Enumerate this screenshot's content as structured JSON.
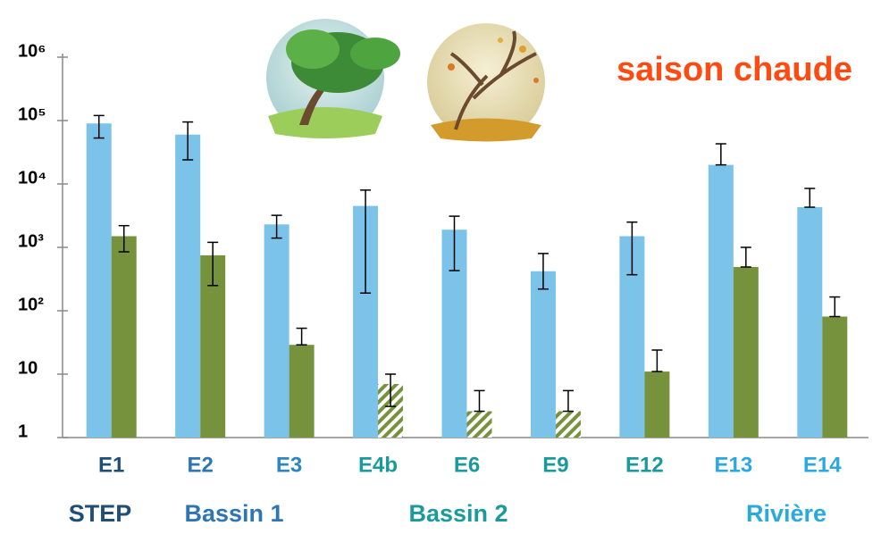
{
  "chart_data": {
    "type": "bar",
    "title": "saison chaude",
    "log_scale": true,
    "categories": [
      "E1",
      "E2",
      "E3",
      "E4b",
      "E6",
      "E9",
      "E12",
      "E13",
      "E14"
    ],
    "category_colors": [
      "#1f4e79",
      "#2e75b6",
      "#2e86c1",
      "#1a9a9a",
      "#1a9a9a",
      "#1a9a9a",
      "#1a9a9a",
      "#2aa8e0",
      "#2aa8e0"
    ],
    "groups": [
      {
        "name": "STEP",
        "color": "#1f4e79"
      },
      {
        "name": "Bassin 1",
        "color": "#2e75b6"
      },
      {
        "name": "Bassin 2",
        "color": "#1a9a9a"
      },
      {
        "name": "Rivière",
        "color": "#2aa8e0"
      }
    ],
    "series": [
      {
        "color": "#7cc3ea",
        "values": [
          90000,
          60000,
          2300,
          4500,
          1900,
          420,
          1500,
          20000,
          4300
        ],
        "err_low": [
          53000,
          24000,
          1400,
          190,
          430,
          220,
          370,
          20000,
          4300
        ],
        "err_high": [
          120000,
          95000,
          3200,
          8000,
          3100,
          800,
          2500,
          43000,
          8500
        ],
        "hatched": [
          false,
          false,
          false,
          false,
          false,
          false,
          false,
          false,
          false
        ]
      },
      {
        "color": "#76923c",
        "values": [
          1500,
          750,
          29,
          7,
          2.6,
          2.6,
          11,
          490,
          81
        ],
        "err_low": [
          850,
          250,
          29,
          3.1,
          2.6,
          2.6,
          11,
          490,
          81
        ],
        "err_high": [
          2200,
          1200,
          53,
          10,
          5.5,
          5.5,
          24,
          1000,
          165
        ],
        "hatched": [
          false,
          false,
          false,
          true,
          true,
          true,
          false,
          false,
          false
        ]
      }
    ],
    "ylim": [
      1,
      1000000
    ],
    "yticks": [
      1,
      10,
      {
        "value": 100,
        "label": "10²"
      },
      {
        "value": 1000,
        "label": "10³"
      },
      {
        "value": 10000,
        "label": "10⁴"
      },
      {
        "value": 100000,
        "label": "10⁵"
      },
      {
        "value": 1000000,
        "label": "10⁶"
      }
    ]
  }
}
